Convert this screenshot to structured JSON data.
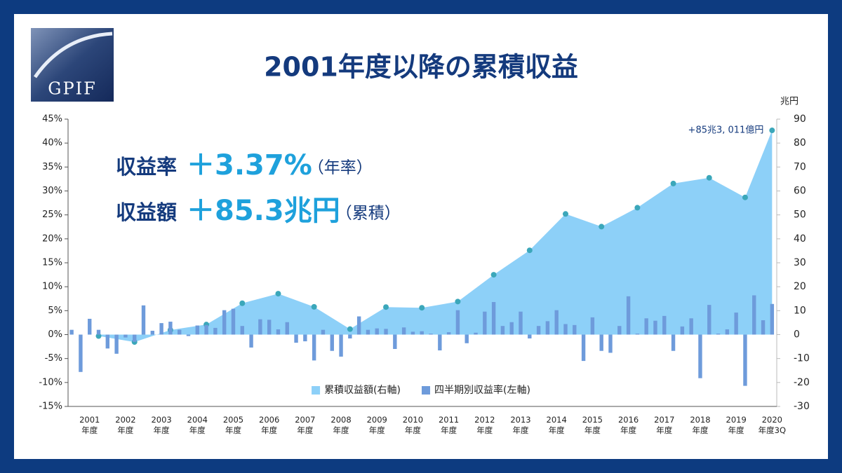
{
  "logo": "GPIF",
  "chart_data": {
    "type": "bar+area",
    "title": "2001年度以降の累積収益",
    "y2_label": "兆円",
    "headlines": [
      {
        "label": "収益率",
        "value_text": "＋3.37%",
        "note": "（年率）"
      },
      {
        "label": "収益額",
        "value_text": "＋85.3兆円",
        "note": "（累積）"
      }
    ],
    "annotation": "+85兆3, 011億円",
    "legend": "bottom-center",
    "xlim": [
      2000.9,
      2020.63
    ],
    "xticks": [
      {
        "value": 2001.5,
        "label": "2001\n年度"
      },
      {
        "value": 2002.5,
        "label": "2002\n年度"
      },
      {
        "value": 2003.5,
        "label": "2003\n年度"
      },
      {
        "value": 2004.5,
        "label": "2004\n年度"
      },
      {
        "value": 2005.5,
        "label": "2005\n年度"
      },
      {
        "value": 2006.5,
        "label": "2006\n年度"
      },
      {
        "value": 2007.5,
        "label": "2007\n年度"
      },
      {
        "value": 2008.5,
        "label": "2008\n年度"
      },
      {
        "value": 2009.5,
        "label": "2009\n年度"
      },
      {
        "value": 2010.5,
        "label": "2010\n年度"
      },
      {
        "value": 2011.5,
        "label": "2011\n年度"
      },
      {
        "value": 2012.5,
        "label": "2012\n年度"
      },
      {
        "value": 2013.5,
        "label": "2013\n年度"
      },
      {
        "value": 2014.5,
        "label": "2014\n年度"
      },
      {
        "value": 2015.5,
        "label": "2015\n年度"
      },
      {
        "value": 2016.5,
        "label": "2016\n年度"
      },
      {
        "value": 2017.5,
        "label": "2017\n年度"
      },
      {
        "value": 2018.5,
        "label": "2018\n年度"
      },
      {
        "value": 2019.5,
        "label": "2019\n年度"
      },
      {
        "value": 2020.5,
        "label": "2020\n年度3Q"
      }
    ],
    "ylim": [
      -15,
      45
    ],
    "yticks": [
      {
        "value": 45,
        "label": "45%"
      },
      {
        "value": 40,
        "label": "40%"
      },
      {
        "value": 35,
        "label": "35%"
      },
      {
        "value": 30,
        "label": "30%"
      },
      {
        "value": 25,
        "label": "25%"
      },
      {
        "value": 20,
        "label": "20%"
      },
      {
        "value": 15,
        "label": "15%"
      },
      {
        "value": 10,
        "label": "10%"
      },
      {
        "value": 5,
        "label": "5%"
      },
      {
        "value": 0,
        "label": "0%"
      },
      {
        "value": -5,
        "label": "-5%"
      },
      {
        "value": -10,
        "label": "-10%"
      },
      {
        "value": -15,
        "label": "-15%"
      }
    ],
    "y2lim": [
      -30,
      90
    ],
    "y2ticks": [
      90,
      80,
      70,
      60,
      50,
      40,
      30,
      20,
      10,
      0,
      -10,
      -20,
      -30
    ],
    "series": [
      {
        "name": "累積収益額(右軸)",
        "type": "area",
        "axis": "y2",
        "color": "#8dd0f8",
        "marker_color": "#3ba7ba",
        "x": [
          2001.75,
          2002.75,
          2003.75,
          2004.75,
          2005.75,
          2006.75,
          2007.75,
          2008.75,
          2009.75,
          2010.75,
          2011.75,
          2012.75,
          2013.75,
          2014.75,
          2015.75,
          2016.75,
          2017.75,
          2018.75,
          2019.75,
          2020.5
        ],
        "values": [
          -0.6,
          -3.1,
          1.9,
          4.2,
          13.1,
          17.1,
          11.6,
          2.3,
          11.5,
          11.2,
          13.8,
          25.0,
          35.2,
          50.4,
          45.1,
          53.0,
          63.1,
          65.5,
          57.3,
          85.3
        ]
      },
      {
        "name": "四半期別収益率(左軸)",
        "type": "bar",
        "color": "#6e9bdb",
        "x": [
          2001,
          2001.25,
          2001.5,
          2001.75,
          2002,
          2002.25,
          2002.5,
          2002.75,
          2003,
          2003.25,
          2003.5,
          2003.75,
          2004,
          2004.25,
          2004.5,
          2004.75,
          2005,
          2005.25,
          2005.5,
          2005.75,
          2006,
          2006.25,
          2006.5,
          2006.75,
          2007,
          2007.25,
          2007.5,
          2007.75,
          2008,
          2008.25,
          2008.5,
          2008.75,
          2009,
          2009.25,
          2009.5,
          2009.75,
          2010,
          2010.25,
          2010.5,
          2010.75,
          2011,
          2011.25,
          2011.5,
          2011.75,
          2012,
          2012.25,
          2012.5,
          2012.75,
          2013,
          2013.25,
          2013.5,
          2013.75,
          2014,
          2014.25,
          2014.5,
          2014.75,
          2015,
          2015.25,
          2015.5,
          2015.75,
          2016,
          2016.25,
          2016.5,
          2016.75,
          2017,
          2017.25,
          2017.5,
          2017.75,
          2018,
          2018.25,
          2018.5,
          2018.75,
          2019,
          2019.25,
          2019.5,
          2019.75,
          2020,
          2020.25,
          2020.5
        ],
        "values": [
          1.0,
          -7.8,
          3.3,
          1.0,
          -2.9,
          -4.0,
          -0.6,
          -1.5,
          6.1,
          0.8,
          2.4,
          2.7,
          1.0,
          -0.3,
          1.9,
          2.0,
          1.4,
          5.1,
          5.4,
          1.8,
          -2.7,
          3.2,
          3.1,
          1.1,
          2.6,
          -1.7,
          -1.4,
          -5.4,
          1.0,
          -3.4,
          -4.6,
          -0.8,
          3.8,
          1.0,
          1.3,
          1.2,
          -3.0,
          1.5,
          0.6,
          0.7,
          0.2,
          -3.3,
          0.5,
          5.1,
          -1.8,
          0.4,
          4.8,
          6.8,
          1.8,
          2.6,
          4.8,
          -0.8,
          1.8,
          2.8,
          5.1,
          2.2,
          2.0,
          -5.5,
          3.6,
          -3.4,
          -3.8,
          1.8,
          8.0,
          0.2,
          3.4,
          2.9,
          3.9,
          -3.4,
          1.7,
          3.4,
          -9.1,
          6.2,
          0.2,
          1.1,
          4.6,
          -10.7,
          8.2,
          3.0,
          6.4
        ]
      }
    ]
  }
}
